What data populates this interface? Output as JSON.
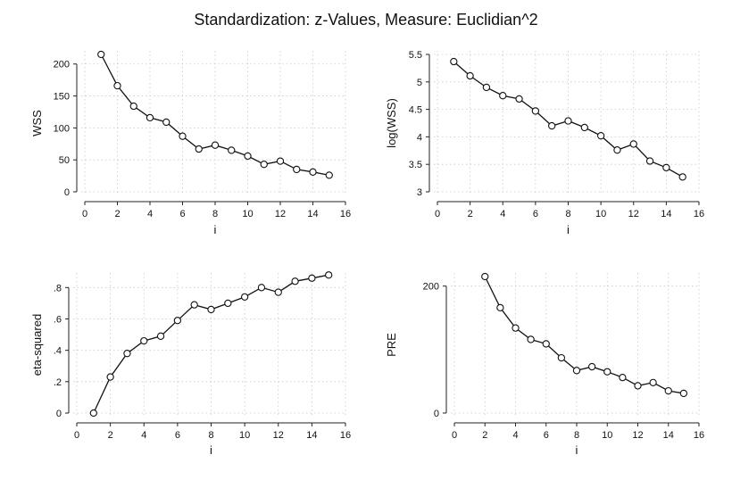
{
  "title": "Standardization: z-Values, Measure: Euclidian^2",
  "chart_data": [
    {
      "type": "line",
      "xlabel": "i",
      "ylabel": "WSS",
      "xlim": [
        0,
        16
      ],
      "ylim": [
        0,
        215
      ],
      "xticks": [
        0,
        2,
        4,
        6,
        8,
        10,
        12,
        14,
        16
      ],
      "yticks": [
        0,
        50,
        100,
        150,
        200
      ],
      "ytick_labels": [
        "0",
        "50",
        "100",
        "150",
        "200"
      ],
      "grid": true,
      "x": [
        1,
        2,
        3,
        4,
        5,
        6,
        7,
        8,
        9,
        10,
        11,
        12,
        13,
        14,
        15
      ],
      "y": [
        215,
        166,
        134,
        116,
        109,
        87,
        67,
        73,
        65,
        56,
        43,
        48,
        35,
        31,
        26
      ]
    },
    {
      "type": "line",
      "xlabel": "i",
      "ylabel": "log(WSS)",
      "xlim": [
        0,
        16
      ],
      "ylim": [
        3,
        5.5
      ],
      "xticks": [
        0,
        2,
        4,
        6,
        8,
        10,
        12,
        14,
        16
      ],
      "yticks": [
        3,
        3.5,
        4,
        4.5,
        5,
        5.5
      ],
      "ytick_labels": [
        "3",
        "3.5",
        "4",
        "4.5",
        "5",
        "5.5"
      ],
      "grid": true,
      "x": [
        1,
        2,
        3,
        4,
        5,
        6,
        7,
        8,
        9,
        10,
        11,
        12,
        13,
        14,
        15
      ],
      "y": [
        5.37,
        5.11,
        4.9,
        4.75,
        4.69,
        4.47,
        4.2,
        4.29,
        4.17,
        4.02,
        3.76,
        3.87,
        3.56,
        3.44,
        3.27
      ]
    },
    {
      "type": "line",
      "xlabel": "i",
      "ylabel": "eta-squared",
      "xlim": [
        0,
        16
      ],
      "ylim": [
        0,
        0.87
      ],
      "xticks": [
        0,
        2,
        4,
        6,
        8,
        10,
        12,
        14,
        16
      ],
      "yticks": [
        0,
        0.2,
        0.4,
        0.6,
        0.8
      ],
      "ytick_labels": [
        "0",
        ".2",
        ".4",
        ".6",
        ".8"
      ],
      "grid": true,
      "x": [
        1,
        2,
        3,
        4,
        5,
        6,
        7,
        8,
        9,
        10,
        11,
        12,
        13,
        14,
        15
      ],
      "y": [
        0,
        0.23,
        0.38,
        0.46,
        0.49,
        0.59,
        0.69,
        0.66,
        0.7,
        0.74,
        0.8,
        0.77,
        0.84,
        0.86,
        0.88
      ]
    },
    {
      "type": "line",
      "xlabel": "i",
      "ylabel": "PRE",
      "xlim": [
        0,
        16
      ],
      "ylim": [
        0,
        215
      ],
      "xticks": [
        0,
        2,
        4,
        6,
        8,
        10,
        12,
        14,
        16
      ],
      "yticks": [
        0,
        200
      ],
      "ytick_labels": [
        "0",
        "200"
      ],
      "grid": true,
      "x": [
        2,
        3,
        4,
        5,
        6,
        7,
        8,
        9,
        10,
        11,
        12,
        13,
        14,
        15
      ],
      "y": [
        215,
        166,
        134,
        116,
        109,
        87,
        67,
        73,
        65,
        56,
        43,
        48,
        35,
        31
      ]
    }
  ]
}
